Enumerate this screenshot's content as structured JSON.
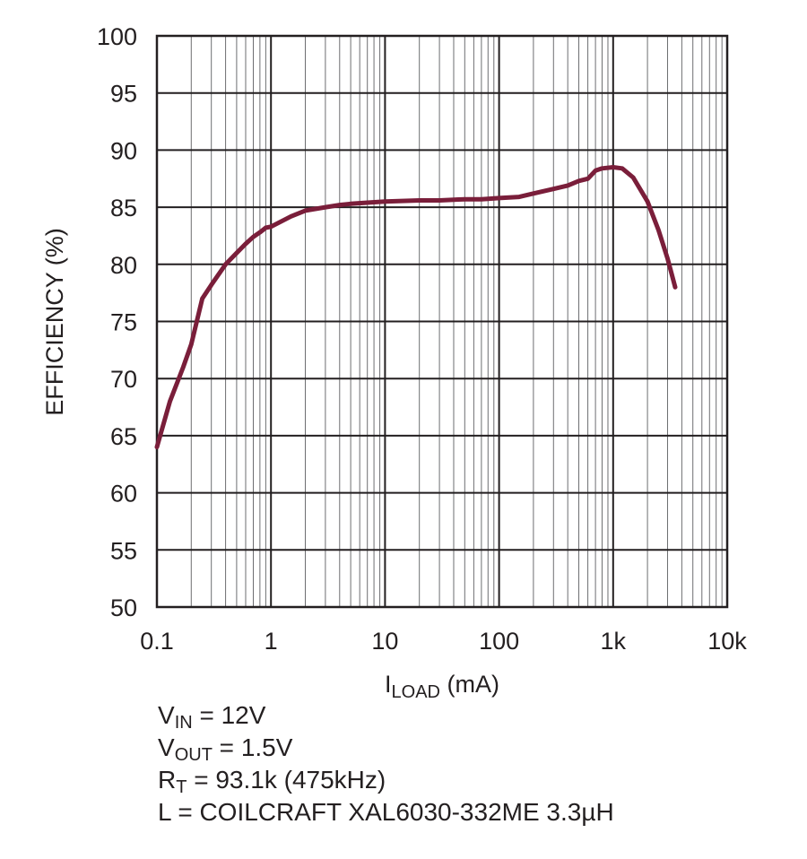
{
  "chart_data": {
    "type": "line",
    "x_scale": "log",
    "xlim": [
      0.1,
      10000
    ],
    "ylim": [
      50,
      100
    ],
    "x_ticks": [
      0.1,
      1,
      10,
      100,
      1000,
      10000
    ],
    "x_tick_labels": [
      "0.1",
      "1",
      "10",
      "100",
      "1k",
      "10k"
    ],
    "y_ticks": [
      50,
      55,
      60,
      65,
      70,
      75,
      80,
      85,
      90,
      95,
      100
    ],
    "y_tick_labels": [
      "50",
      "55",
      "60",
      "65",
      "70",
      "75",
      "80",
      "85",
      "90",
      "95",
      "100"
    ],
    "xlabel": {
      "main": "I",
      "sub": "LOAD",
      "rest": " (mA)"
    },
    "ylabel": "EFFICIENCY (%)",
    "grid": true,
    "series": [
      {
        "color": "#7a1e3a",
        "x": [
          0.1,
          0.13,
          0.17,
          0.2,
          0.25,
          0.3,
          0.4,
          0.5,
          0.6,
          0.7,
          0.8,
          0.9,
          1,
          1.5,
          2,
          3,
          4,
          5,
          7,
          10,
          20,
          30,
          50,
          70,
          100,
          150,
          200,
          300,
          400,
          500,
          600,
          700,
          800,
          1000,
          1200,
          1500,
          2000,
          2500,
          3000,
          3500
        ],
        "y": [
          64,
          68,
          71,
          73,
          77,
          78.2,
          80,
          81,
          81.8,
          82.4,
          82.8,
          83.2,
          83.3,
          84.2,
          84.7,
          85,
          85.2,
          85.3,
          85.4,
          85.5,
          85.6,
          85.6,
          85.7,
          85.7,
          85.8,
          85.9,
          86.2,
          86.6,
          86.9,
          87.3,
          87.5,
          88.2,
          88.4,
          88.5,
          88.4,
          87.6,
          85.5,
          83,
          80.5,
          78
        ]
      }
    ]
  },
  "conditions": [
    {
      "main": "V",
      "sub": "IN",
      "rest": " = 12V"
    },
    {
      "main": "V",
      "sub": "OUT",
      "rest": " = 1.5V"
    },
    {
      "main": "R",
      "sub": "T",
      "rest": " = 93.1k (475kHz)"
    },
    {
      "main": "L = COILCRAFT XAL6030-332ME 3.3µH",
      "sub": "",
      "rest": ""
    }
  ]
}
